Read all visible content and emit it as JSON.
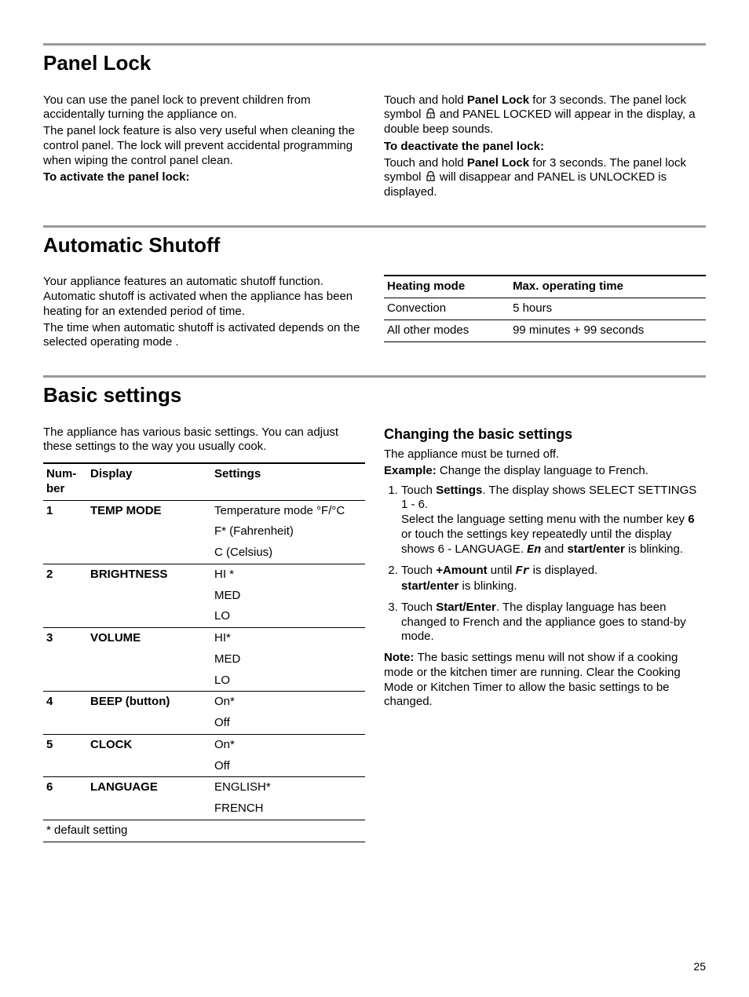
{
  "page_number": "25",
  "panel_lock": {
    "title": "Panel Lock",
    "p1": "You can use the panel lock to prevent children from accidentally turning the appliance on.",
    "p2": "The panel lock feature is also very useful when cleaning the control panel. The lock will prevent accidental programming when wiping the control panel clean.",
    "activate_label": "To activate the panel lock:",
    "deactivate_label": "To deactivate the panel lock:",
    "activate_pre": "Touch and hold ",
    "actbtn": "Panel Lock",
    "activate_post1": " for 3 seconds. The panel lock symbol ",
    "activate_post2": " and PANEL LOCKED will appear in the display, a double beep sounds.",
    "deactivate_pre": "Touch and hold ",
    "deactbtn": "Panel Lock",
    "deactivate_post1": " for 3 seconds. The panel lock symbol ",
    "deactivate_post2": " will disappear and PANEL is UNLOCKED is displayed."
  },
  "auto_shutoff": {
    "title": "Automatic Shutoff",
    "p1": "Your appliance features an automatic shutoff function. Automatic shutoff is activated when the appliance has been heating for an extended period of time.",
    "p2": "The time when automatic shutoff is activated depends on the selected operating mode .",
    "table": {
      "col1": "Heating mode",
      "col2": "Max. operating time",
      "rows": [
        {
          "mode": "Convection",
          "time": "5 hours"
        },
        {
          "mode": "All other modes",
          "time": "99 minutes + 99 seconds"
        }
      ]
    }
  },
  "basic_settings": {
    "title": "Basic settings",
    "intro": "The appliance has various basic settings. You can adjust these settings to the way you usually cook.",
    "table": {
      "h_num": "Num-ber",
      "h_disp": "Display",
      "h_set": "Settings",
      "rows": [
        {
          "num": "1",
          "disp": "TEMP MODE",
          "set": [
            "Temperature mode °F/°C",
            "F* (Fahrenheit)",
            "C (Celsius)"
          ]
        },
        {
          "num": "2",
          "disp": "BRIGHTNESS",
          "set": [
            "HI *",
            "MED",
            "LO"
          ]
        },
        {
          "num": "3",
          "disp": "VOLUME",
          "set": [
            "HI*",
            "MED",
            "LO"
          ]
        },
        {
          "num": "4",
          "disp": "BEEP (button)",
          "set": [
            "On*",
            "Off"
          ]
        },
        {
          "num": "5",
          "disp": "CLOCK",
          "set": [
            "On*",
            "Off"
          ]
        },
        {
          "num": "6",
          "disp": "LANGUAGE",
          "set": [
            "ENGLISH*",
            "FRENCH"
          ]
        }
      ],
      "footnote": "* default setting"
    },
    "changing": {
      "title": "Changing the basic settings",
      "p1": "The appliance must be turned off.",
      "example_label": "Example:",
      "example_text": " Change the display language to French.",
      "step1a": "Touch ",
      "step1_settings": "Settings",
      "step1b": ". The display shows SELECT SETTINGS 1 - 6.",
      "step1c": "Select the language setting menu with the number key ",
      "step1_six": "6",
      "step1d": " or touch the settings key repeatedly until the display shows 6 - LANGUAGE. ",
      "step1_en": "En",
      "step1e": " and ",
      "step1_se": "start/enter",
      "step1f": " is blinking.",
      "step2a": "Touch ",
      "step2_amt": "+Amount",
      "step2b": " until ",
      "step2_fr": "Fr",
      "step2c": " is displayed.",
      "step2d": "start/enter",
      "step2e": " is blinking.",
      "step3a": "Touch ",
      "step3_se": "Start/Enter",
      "step3b": ". The display language has been changed to French and the appliance goes to stand-by mode.",
      "note_label": "Note: ",
      "note_text": " The basic settings menu will not show if a cooking mode or the kitchen timer are running. Clear the Cooking Mode or Kitchen Timer to allow the basic settings to be changed."
    }
  },
  "style": {
    "rule_color": "#999999",
    "text_color": "#000000",
    "bg_color": "#ffffff",
    "h1_fontsize": 26,
    "body_fontsize": 15,
    "subhead_fontsize": 18
  }
}
